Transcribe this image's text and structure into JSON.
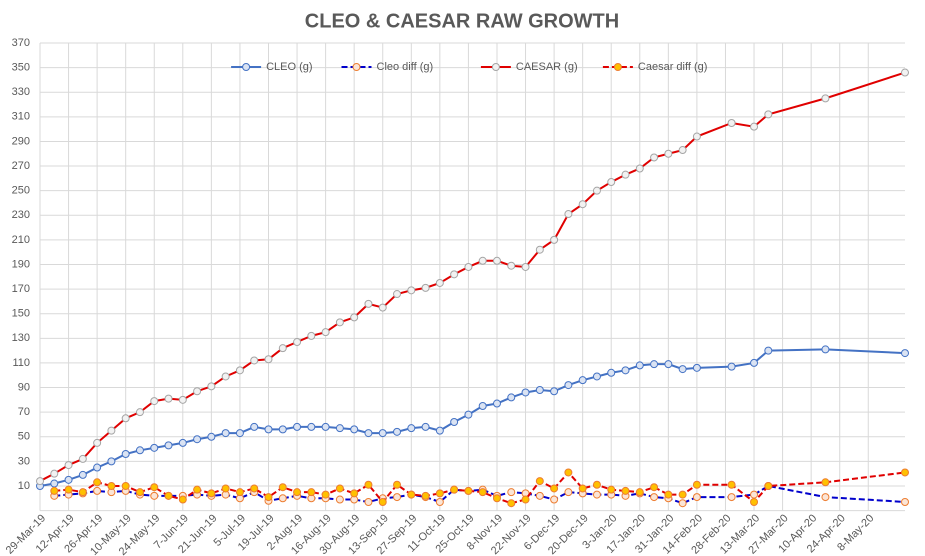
{
  "chart_data": {
    "type": "line",
    "title": "CLEO & CAESAR RAW GROWTH",
    "x": [
      "2019-03-29",
      "2019-04-05",
      "2019-04-12",
      "2019-04-19",
      "2019-04-26",
      "2019-05-03",
      "2019-05-10",
      "2019-05-17",
      "2019-05-24",
      "2019-05-31",
      "2019-06-07",
      "2019-06-14",
      "2019-06-21",
      "2019-06-28",
      "2019-07-05",
      "2019-07-12",
      "2019-07-19",
      "2019-07-26",
      "2019-08-02",
      "2019-08-09",
      "2019-08-16",
      "2019-08-23",
      "2019-08-30",
      "2019-09-06",
      "2019-09-13",
      "2019-09-20",
      "2019-09-27",
      "2019-10-04",
      "2019-10-11",
      "2019-10-18",
      "2019-10-25",
      "2019-11-01",
      "2019-11-08",
      "2019-11-15",
      "2019-11-22",
      "2019-11-29",
      "2019-12-06",
      "2019-12-13",
      "2019-12-20",
      "2019-12-27",
      "2020-01-03",
      "2020-01-10",
      "2020-01-17",
      "2020-01-24",
      "2020-01-31",
      "2020-02-07",
      "2020-02-14",
      "2020-03-02",
      "2020-03-13",
      "2020-03-20",
      "2020-04-17",
      "2020-05-26"
    ],
    "series": [
      {
        "name": "CLEO (g)",
        "color": "#4472c4",
        "dash": false,
        "marker_fill": "#dae3f3",
        "marker_stroke": "#4472c4",
        "values": [
          10,
          12,
          15,
          19,
          25,
          30,
          36,
          39,
          41,
          43,
          45,
          48,
          50,
          53,
          53,
          58,
          56,
          56,
          58,
          58,
          58,
          57,
          56,
          53,
          53,
          54,
          57,
          58,
          55,
          62,
          68,
          75,
          77,
          82,
          86,
          88,
          87,
          92,
          96,
          99,
          102,
          104,
          108,
          109,
          109,
          105,
          106,
          107,
          110,
          120,
          121,
          118
        ]
      },
      {
        "name": "Cleo diff (g)",
        "color": "#0000cc",
        "dash": true,
        "marker_fill": "#fbe5d6",
        "marker_stroke": "#ed7d31",
        "values": [
          null,
          2,
          3,
          4,
          6,
          5,
          6,
          3,
          2,
          2,
          2,
          3,
          2,
          3,
          0,
          5,
          -2,
          0,
          2,
          0,
          0,
          -1,
          -1,
          -3,
          0,
          1,
          3,
          1,
          -3,
          7,
          6,
          7,
          2,
          5,
          4,
          2,
          -1,
          5,
          4,
          3,
          3,
          2,
          4,
          1,
          0,
          -4,
          1,
          1,
          3,
          10,
          1,
          -3
        ]
      },
      {
        "name": "CAESAR (g)",
        "color": "#e00000",
        "dash": false,
        "marker_fill": "#f2f2f2",
        "marker_stroke": "#a5a5a5",
        "values": [
          14,
          20,
          27,
          32,
          45,
          55,
          65,
          70,
          79,
          81,
          80,
          87,
          91,
          99,
          104,
          112,
          113,
          122,
          127,
          132,
          135,
          143,
          147,
          158,
          155,
          166,
          169,
          171,
          175,
          182,
          188,
          193,
          193,
          189,
          188,
          202,
          210,
          231,
          239,
          250,
          257,
          263,
          268,
          277,
          280,
          283,
          294,
          305,
          302,
          312,
          325,
          346
        ]
      },
      {
        "name": "Caesar diff (g)",
        "color": "#e00000",
        "dash": true,
        "marker_fill": "#ffc000",
        "marker_stroke": "#ed7d31",
        "values": [
          null,
          6,
          7,
          5,
          13,
          10,
          10,
          5,
          9,
          2,
          -1,
          7,
          4,
          8,
          5,
          8,
          1,
          9,
          5,
          5,
          3,
          8,
          4,
          11,
          -3,
          11,
          3,
          2,
          4,
          7,
          6,
          5,
          0,
          -4,
          -1,
          14,
          8,
          21,
          8,
          11,
          7,
          6,
          5,
          9,
          3,
          3,
          11,
          11,
          -3,
          10,
          13,
          21
        ]
      }
    ],
    "xlim": [
      "2019-03-29",
      "2020-05-26"
    ],
    "xticks": [
      {
        "value": "2019-03-29",
        "label": "29-Mar-19"
      },
      {
        "value": "2019-04-12",
        "label": "12-Apr-19"
      },
      {
        "value": "2019-04-26",
        "label": "26-Apr-19"
      },
      {
        "value": "2019-05-10",
        "label": "10-May-19"
      },
      {
        "value": "2019-05-24",
        "label": "24-May-19"
      },
      {
        "value": "2019-06-07",
        "label": "7-Jun-19"
      },
      {
        "value": "2019-06-21",
        "label": "21-Jun-19"
      },
      {
        "value": "2019-07-05",
        "label": "5-Jul-19"
      },
      {
        "value": "2019-07-19",
        "label": "19-Jul-19"
      },
      {
        "value": "2019-08-02",
        "label": "2-Aug-19"
      },
      {
        "value": "2019-08-16",
        "label": "16-Aug-19"
      },
      {
        "value": "2019-08-30",
        "label": "30-Aug-19"
      },
      {
        "value": "2019-09-13",
        "label": "13-Sep-19"
      },
      {
        "value": "2019-09-27",
        "label": "27-Sep-19"
      },
      {
        "value": "2019-10-11",
        "label": "11-Oct-19"
      },
      {
        "value": "2019-10-25",
        "label": "25-Oct-19"
      },
      {
        "value": "2019-11-08",
        "label": "8-Nov-19"
      },
      {
        "value": "2019-11-22",
        "label": "22-Nov-19"
      },
      {
        "value": "2019-12-06",
        "label": "6-Dec-19"
      },
      {
        "value": "2019-12-20",
        "label": "20-Dec-19"
      },
      {
        "value": "2020-01-03",
        "label": "3-Jan-20"
      },
      {
        "value": "2020-01-17",
        "label": "17-Jan-20"
      },
      {
        "value": "2020-01-31",
        "label": "31-Jan-20"
      },
      {
        "value": "2020-02-14",
        "label": "14-Feb-20"
      },
      {
        "value": "2020-02-28",
        "label": "28-Feb-20"
      },
      {
        "value": "2020-03-13",
        "label": "13-Mar-20"
      },
      {
        "value": "2020-03-27",
        "label": "27-Mar-20"
      },
      {
        "value": "2020-04-10",
        "label": "10-Apr-20"
      },
      {
        "value": "2020-04-24",
        "label": "24-Apr-20"
      },
      {
        "value": "2020-05-08",
        "label": "8-May-20"
      }
    ],
    "ylim": [
      -10,
      370
    ],
    "yticks": [
      10,
      30,
      50,
      70,
      90,
      110,
      130,
      150,
      170,
      190,
      210,
      230,
      250,
      270,
      290,
      310,
      330,
      350,
      370
    ],
    "grid": true,
    "legend": "top"
  }
}
